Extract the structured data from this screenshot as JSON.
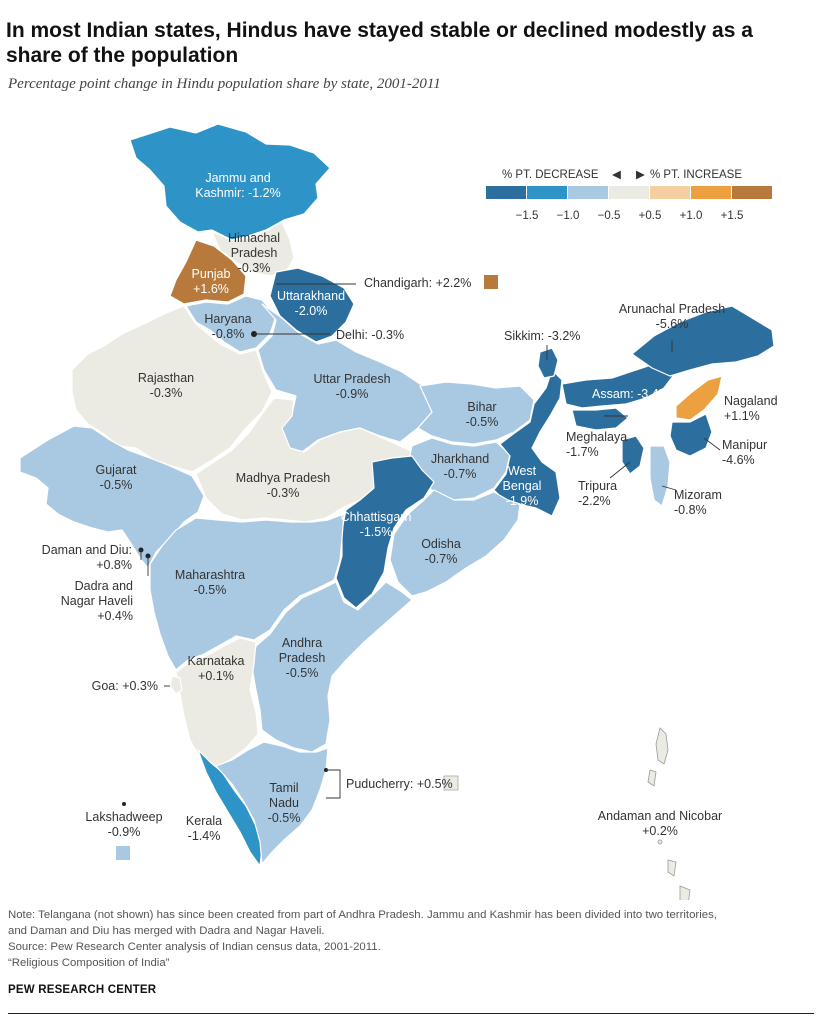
{
  "title": "In most Indian states, Hindus have stayed stable or declined modestly as a share of the population",
  "subtitle": "Percentage point change in Hindu population share by state, 2001-2011",
  "legend": {
    "decrease_label": "% PT. DECREASE",
    "increase_label": "% PT. INCREASE",
    "ticks": [
      "−1.5",
      "−1.0",
      "−0.5",
      "+0.5",
      "+1.0",
      "+1.5"
    ],
    "colors": [
      "#2c6f9e",
      "#2e93c6",
      "#a9c9e3",
      "#ebebe3",
      "#f6cfa0",
      "#eca040",
      "#b77a3c"
    ]
  },
  "states": {
    "jk": {
      "name": [
        "Jammu and",
        "Kashmir: -1.2%"
      ]
    },
    "himachal": {
      "name": [
        "Himachal",
        "Pradesh",
        "-0.3%"
      ]
    },
    "punjab": {
      "name": [
        "Punjab",
        "+1.6%"
      ]
    },
    "chandigarh": {
      "name": "Chandigarh: +2.2%"
    },
    "uttarakhand": {
      "name": [
        "Uttarakhand",
        "-2.0%"
      ]
    },
    "haryana": {
      "name": [
        "Haryana",
        "-0.8%"
      ]
    },
    "delhi": {
      "name": "Delhi: -0.3%"
    },
    "rajasthan": {
      "name": [
        "Rajasthan",
        "-0.3%"
      ]
    },
    "up": {
      "name": [
        "Uttar Pradesh",
        "-0.9%"
      ]
    },
    "bihar": {
      "name": [
        "Bihar",
        "-0.5%"
      ]
    },
    "sikkim": {
      "name": "Sikkim: -3.2%"
    },
    "arunachal": {
      "name": [
        "Arunachal Pradesh",
        "-5.6%"
      ]
    },
    "assam": {
      "name": "Assam: -3.4%"
    },
    "nagaland": {
      "name": [
        "Nagaland",
        "+1.1%"
      ]
    },
    "meghalaya": {
      "name": [
        "Meghalaya",
        "-1.7%"
      ]
    },
    "manipur": {
      "name": [
        "Manipur",
        "-4.6%"
      ]
    },
    "tripura": {
      "name": [
        "Tripura",
        "-2.2%"
      ]
    },
    "mizoram": {
      "name": [
        "Mizoram",
        "-0.8%"
      ]
    },
    "gujarat": {
      "name": [
        "Gujarat",
        "-0.5%"
      ]
    },
    "mp": {
      "name": [
        "Madhya Pradesh",
        "-0.3%"
      ]
    },
    "jharkhand": {
      "name": [
        "Jharkhand",
        "-0.7%"
      ]
    },
    "wb": {
      "name": [
        "West",
        "Bengal",
        "-1.9%"
      ]
    },
    "chhattisgarh": {
      "name": [
        "Chhattisgarh",
        "-1.5%"
      ]
    },
    "odisha": {
      "name": [
        "Odisha",
        "-0.7%"
      ]
    },
    "daman": {
      "name": [
        "Daman and Diu:",
        "+0.8%"
      ]
    },
    "dadra": {
      "name": [
        "Dadra and",
        "Nagar Haveli",
        "+0.4%"
      ]
    },
    "maharashtra": {
      "name": [
        "Maharashtra",
        "-0.5%"
      ]
    },
    "karnataka": {
      "name": [
        "Karnataka",
        "+0.1%"
      ]
    },
    "ap": {
      "name": [
        "Andhra",
        "Pradesh",
        "-0.5%"
      ]
    },
    "goa": {
      "name": "Goa: +0.3%"
    },
    "puducherry": {
      "name": "Puducherry: +0.5%"
    },
    "lakshadweep": {
      "name": [
        "Lakshadweep",
        "-0.9%"
      ]
    },
    "kerala": {
      "name": [
        "Kerala",
        "-1.4%"
      ]
    },
    "tn": {
      "name": [
        "Tamil",
        "Nadu",
        "-0.5%"
      ]
    },
    "andaman": {
      "name": [
        "Andaman and Nicobar",
        "+0.2%"
      ]
    }
  },
  "note_lines": [
    "Note: Telangana (not shown) has since been created from part of Andhra Pradesh. Jammu and Kashmir has been divided into two territories,",
    "and Daman and Diu has merged with Dadra and Nagar Haveli.",
    "Source: Pew Research Center analysis of Indian census data, 2001-2011.",
    "“Religious Composition of India”"
  ],
  "brand": "PEW RESEARCH CENTER"
}
